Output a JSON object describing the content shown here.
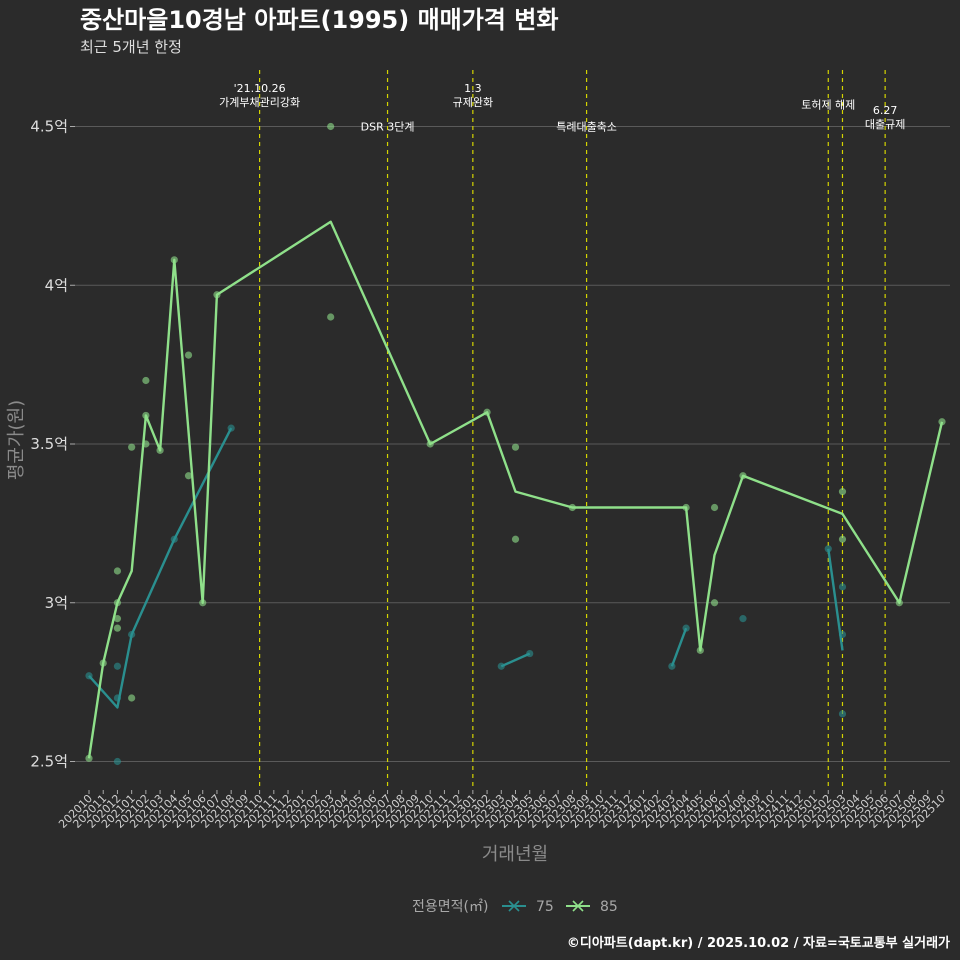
{
  "title": "중산마을10경남 아파트(1995) 매매가격 변화",
  "subtitle": "최근 5개년 한정",
  "caption": "©디아파트(dapt.kr) / 2025.10.02 / 자료=국토교통부 실거래가",
  "colors": {
    "background": "#2b2b2b",
    "grid": "#5a5a5a",
    "vline": "#d4d400",
    "s75": "#2a8f8f",
    "s85": "#8fe08a"
  },
  "chart_data": {
    "type": "line",
    "xlabel": "거래년월",
    "ylabel": "평균가(원)",
    "ylim": [
      2.4,
      4.65
    ],
    "yticks": [
      2.5,
      3,
      3.5,
      4,
      4.5
    ],
    "ytick_labels": [
      "2.5억",
      "3억",
      "3.5억",
      "4억",
      "4.5억"
    ],
    "x_months": [
      "202010",
      "202011",
      "202012",
      "202101",
      "202102",
      "202103",
      "202104",
      "202105",
      "202106",
      "202107",
      "202108",
      "202109",
      "202110",
      "202111",
      "202112",
      "202201",
      "202202",
      "202203",
      "202204",
      "202205",
      "202206",
      "202207",
      "202208",
      "202209",
      "202210",
      "202211",
      "202212",
      "202301",
      "202302",
      "202303",
      "202304",
      "202305",
      "202306",
      "202307",
      "202308",
      "202309",
      "202310",
      "202311",
      "202312",
      "202401",
      "202402",
      "202403",
      "202404",
      "202405",
      "202406",
      "202407",
      "202408",
      "202409",
      "202410",
      "202411",
      "202412",
      "202501",
      "202502",
      "202503",
      "202504",
      "202505",
      "202506",
      "202507",
      "202508",
      "202509",
      "202510"
    ],
    "legend_title": "전용면적(㎡)",
    "series": [
      {
        "name": "75",
        "color_key": "s75",
        "lines": [
          [
            [
              "202010",
              2.77
            ],
            [
              "202012",
              2.67
            ],
            [
              "202101",
              2.9
            ],
            [
              "202104",
              3.2
            ],
            [
              "202108",
              3.55
            ]
          ],
          [
            [
              "202303",
              2.8
            ],
            [
              "202305",
              2.84
            ]
          ],
          [
            [
              "202403",
              2.8
            ],
            [
              "202404",
              2.92
            ]
          ],
          [
            [
              "202502",
              3.17
            ],
            [
              "202503",
              2.85
            ]
          ]
        ],
        "points": [
          [
            "202010",
            2.77
          ],
          [
            "202012",
            2.8
          ],
          [
            "202012",
            2.7
          ],
          [
            "202012",
            2.5
          ],
          [
            "202101",
            2.9
          ],
          [
            "202104",
            3.2
          ],
          [
            "202108",
            3.55
          ],
          [
            "202303",
            2.8
          ],
          [
            "202305",
            2.84
          ],
          [
            "202403",
            2.8
          ],
          [
            "202404",
            2.92
          ],
          [
            "202408",
            2.95
          ],
          [
            "202502",
            3.17
          ],
          [
            "202503",
            3.05
          ],
          [
            "202503",
            2.9
          ],
          [
            "202503",
            2.65
          ]
        ]
      },
      {
        "name": "85",
        "color_key": "s85",
        "lines": [
          [
            [
              "202010",
              2.51
            ],
            [
              "202011",
              2.81
            ],
            [
              "202012",
              3.0
            ],
            [
              "202101",
              3.1
            ],
            [
              "202102",
              3.59
            ],
            [
              "202103",
              3.48
            ],
            [
              "202104",
              4.08
            ],
            [
              "202106",
              3.0
            ],
            [
              "202107",
              3.97
            ],
            [
              "202203",
              4.2
            ],
            [
              "202210",
              3.5
            ],
            [
              "202302",
              3.6
            ],
            [
              "202304",
              3.35
            ],
            [
              "202308",
              3.3
            ],
            [
              "202404",
              3.3
            ],
            [
              "202405",
              2.85
            ],
            [
              "202406",
              3.15
            ],
            [
              "202408",
              3.4
            ],
            [
              "202503",
              3.28
            ],
            [
              "202507",
              3.0
            ],
            [
              "202510",
              3.57
            ]
          ]
        ],
        "points": [
          [
            "202010",
            2.51
          ],
          [
            "202011",
            2.81
          ],
          [
            "202012",
            3.1
          ],
          [
            "202012",
            3.0
          ],
          [
            "202012",
            2.95
          ],
          [
            "202012",
            2.92
          ],
          [
            "202101",
            3.49
          ],
          [
            "202101",
            2.7
          ],
          [
            "202102",
            3.7
          ],
          [
            "202102",
            3.59
          ],
          [
            "202102",
            3.5
          ],
          [
            "202103",
            3.48
          ],
          [
            "202104",
            4.08
          ],
          [
            "202105",
            3.78
          ],
          [
            "202105",
            3.4
          ],
          [
            "202106",
            3.0
          ],
          [
            "202107",
            3.97
          ],
          [
            "202203",
            4.5
          ],
          [
            "202203",
            3.9
          ],
          [
            "202210",
            3.5
          ],
          [
            "202302",
            3.6
          ],
          [
            "202304",
            3.49
          ],
          [
            "202304",
            3.2
          ],
          [
            "202308",
            3.3
          ],
          [
            "202404",
            3.3
          ],
          [
            "202405",
            2.85
          ],
          [
            "202406",
            3.3
          ],
          [
            "202406",
            3.0
          ],
          [
            "202408",
            3.4
          ],
          [
            "202503",
            3.35
          ],
          [
            "202503",
            3.2
          ],
          [
            "202507",
            3.0
          ],
          [
            "202510",
            3.57
          ]
        ]
      }
    ],
    "annotations": [
      {
        "at": "202110",
        "lines": [
          "'21.10.26",
          "가계부채관리강화"
        ],
        "level": 4.6
      },
      {
        "at": "202207",
        "lines": [
          "DSR 3단계"
        ],
        "level": 4.5
      },
      {
        "at": "202301",
        "lines": [
          "1.3",
          "규제완화"
        ],
        "level": 4.6
      },
      {
        "at": "202309",
        "lines": [
          "특례대출축소"
        ],
        "level": 4.5
      },
      {
        "at": "202502",
        "lines": [
          "토허제 해제"
        ],
        "level": 4.57
      },
      {
        "at": "202503",
        "lines": [],
        "level": 4.5
      },
      {
        "at": "202506",
        "lines": [
          "6.27",
          "대출규제"
        ],
        "level": 4.53
      }
    ]
  }
}
